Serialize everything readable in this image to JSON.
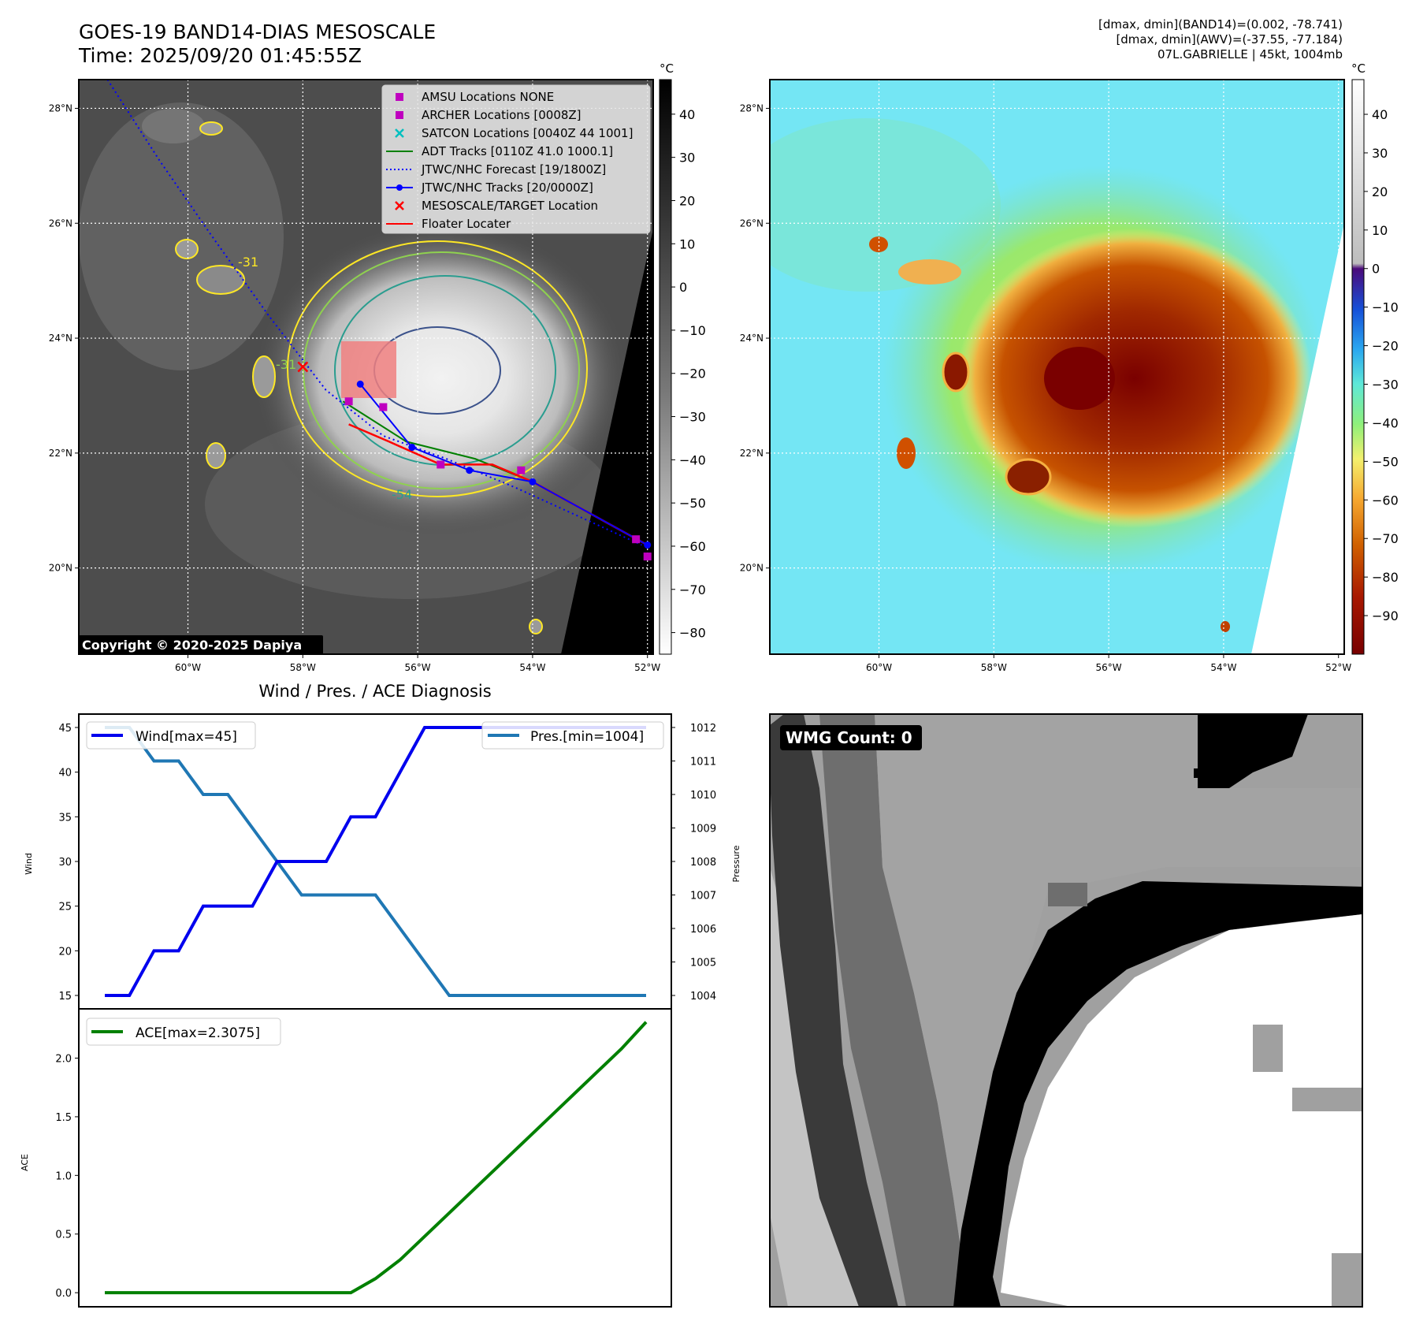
{
  "header": {
    "title_line1": "GOES-19 BAND14-DIAS MESOSCALE",
    "title_line2": "Time: 2025/09/20 01:45:55Z",
    "stats_line1": "[dmax, dmin](BAND14)=(0.002, -78.741)",
    "stats_line2": "[dmax, dmin](AWV)=(-37.55, -77.184)",
    "stats_line3": "07L.GABRIELLE | 45kt, 1004mb"
  },
  "map": {
    "lon_ticks": [
      "60°W",
      "58°W",
      "56°W",
      "54°W",
      "52°W"
    ],
    "lat_ticks": [
      "28°N",
      "26°N",
      "24°N",
      "22°N",
      "20°N"
    ],
    "lon_values": [
      -60,
      -58,
      -56,
      -54,
      -52
    ],
    "lat_values": [
      28,
      26,
      24,
      22,
      20
    ],
    "extent": {
      "lon_min": -61.9,
      "lon_max": -51.9,
      "lat_min": 18.5,
      "lat_max": 28.5
    },
    "copyright": "Copyright © 2020-2025 Dapiya",
    "contour_labels": [
      "-31",
      "-31",
      "-54"
    ],
    "legend": [
      {
        "label": "AMSU Locations NONE",
        "marker": "square",
        "color": "#bf00bf"
      },
      {
        "label": "ARCHER Locations [0008Z]",
        "marker": "square",
        "color": "#bf00bf"
      },
      {
        "label": "SATCON Locations [0040Z 44 1001]",
        "marker": "x",
        "color": "#00bfbf"
      },
      {
        "label": "ADT Tracks [0110Z 41.0 1000.1]",
        "marker": "line",
        "color": "#008000"
      },
      {
        "label": "JTWC/NHC Forecast [19/1800Z]",
        "marker": "dotted",
        "color": "#0000ff"
      },
      {
        "label": "JTWC/NHC Tracks [20/0000Z]",
        "marker": "line-dot",
        "color": "#0000ff"
      },
      {
        "label": "MESOSCALE/TARGET Location",
        "marker": "x",
        "color": "#ff0000"
      },
      {
        "label": "Floater Locater",
        "marker": "line",
        "color": "#ff0000"
      }
    ],
    "forecast_track": [
      [
        -61.4,
        28.5
      ],
      [
        -60.5,
        27.1
      ],
      [
        -59.6,
        25.8
      ],
      [
        -58.6,
        24.4
      ],
      [
        -57.6,
        23.1
      ],
      [
        -56.6,
        22.3
      ],
      [
        -55.5,
        21.9
      ],
      [
        -54.3,
        21.4
      ],
      [
        -53.2,
        20.9
      ],
      [
        -52.1,
        20.4
      ]
    ],
    "nhc_track": [
      [
        -57.0,
        23.2
      ],
      [
        -56.1,
        22.1
      ],
      [
        -55.1,
        21.7
      ],
      [
        -54.0,
        21.5
      ],
      [
        -52.0,
        20.4
      ]
    ],
    "adt_track": [
      [
        -57.3,
        22.9
      ],
      [
        -56.2,
        22.2
      ],
      [
        -55.0,
        21.9
      ],
      [
        -54.0,
        21.5
      ],
      [
        -52.0,
        20.4
      ]
    ],
    "archer_points": [
      [
        -57.2,
        22.9
      ],
      [
        -56.6,
        22.8
      ],
      [
        -55.6,
        21.8
      ],
      [
        -54.2,
        21.7
      ],
      [
        -52.2,
        20.5
      ],
      [
        -52.0,
        20.2
      ]
    ],
    "target_location": [
      -58.0,
      23.5
    ],
    "floater": [
      [
        -57.2,
        22.5
      ],
      [
        -56.5,
        22.2
      ],
      [
        -55.6,
        21.8
      ],
      [
        -54.7,
        21.8
      ],
      [
        -54.0,
        21.5
      ],
      [
        -52.0,
        20.4
      ]
    ]
  },
  "colorbar_left": {
    "unit": "°C",
    "ticks": [
      "40",
      "30",
      "20",
      "10",
      "0",
      "−10",
      "−20",
      "−30",
      "−40",
      "−50",
      "−60",
      "−70",
      "−80"
    ],
    "values": [
      40,
      30,
      20,
      10,
      0,
      -10,
      -20,
      -30,
      -40,
      -50,
      -60,
      -70,
      -80
    ],
    "range": [
      48,
      -85
    ]
  },
  "colorbar_right": {
    "unit": "°C",
    "ticks": [
      "40",
      "30",
      "20",
      "10",
      "0",
      "−10",
      "−20",
      "−30",
      "−40",
      "−50",
      "−60",
      "−70",
      "−80",
      "−90"
    ],
    "values": [
      40,
      30,
      20,
      10,
      0,
      -10,
      -20,
      -30,
      -40,
      -50,
      -60,
      -70,
      -80,
      -90
    ],
    "range": [
      49,
      -100
    ]
  },
  "chart_data": [
    {
      "type": "line",
      "title": "Wind / Pres. / ACE Diagnosis",
      "ylabel": "Wind",
      "ylabel_right": "Pressure",
      "x": [
        0,
        1,
        2,
        3,
        4,
        5,
        6,
        7,
        8,
        9,
        10,
        11,
        12,
        13,
        14,
        15,
        16,
        17,
        18,
        19,
        20,
        21,
        22
      ],
      "series": [
        {
          "name": "Wind[max=45]",
          "axis": "left",
          "color": "#0000ee",
          "values": [
            15,
            15,
            20,
            20,
            25,
            25,
            25,
            30,
            30,
            30,
            35,
            35,
            40,
            45,
            45,
            45,
            45,
            45,
            45,
            45,
            45,
            45,
            45
          ]
        },
        {
          "name": "Pres.[min=1004]",
          "axis": "right",
          "color": "#1f77b4",
          "values": [
            1012,
            1012,
            1011,
            1011,
            1010,
            1010,
            1009,
            1008,
            1007,
            1007,
            1007,
            1007,
            1006,
            1005,
            1004,
            1004,
            1004,
            1004,
            1004,
            1004,
            1004,
            1004,
            1004
          ]
        }
      ],
      "yticks_left": [
        15,
        20,
        25,
        30,
        35,
        40,
        45
      ],
      "yticks_right": [
        1004,
        1005,
        1006,
        1007,
        1008,
        1009,
        1010,
        1011,
        1012
      ],
      "ylim": [
        13.5,
        46.5
      ],
      "ylim_right": [
        1003.6,
        1012.4
      ]
    },
    {
      "type": "line",
      "ylabel": "ACE",
      "x": [
        0,
        1,
        2,
        3,
        4,
        5,
        6,
        7,
        8,
        9,
        10,
        11,
        12,
        13,
        14,
        15,
        16,
        17,
        18,
        19,
        20,
        21,
        22
      ],
      "series": [
        {
          "name": "ACE[max=2.3075]",
          "color": "#008000",
          "values": [
            0,
            0,
            0,
            0,
            0,
            0,
            0,
            0,
            0,
            0,
            0,
            0.12,
            0.28,
            0.48,
            0.68,
            0.88,
            1.08,
            1.28,
            1.48,
            1.68,
            1.88,
            2.08,
            2.3075
          ]
        }
      ],
      "yticks": [
        "0.0",
        "0.5",
        "1.0",
        "1.5",
        "2.0"
      ],
      "ylim": [
        -0.12,
        2.42
      ]
    }
  ],
  "wmg": {
    "badge": "WMG Count: 0"
  }
}
